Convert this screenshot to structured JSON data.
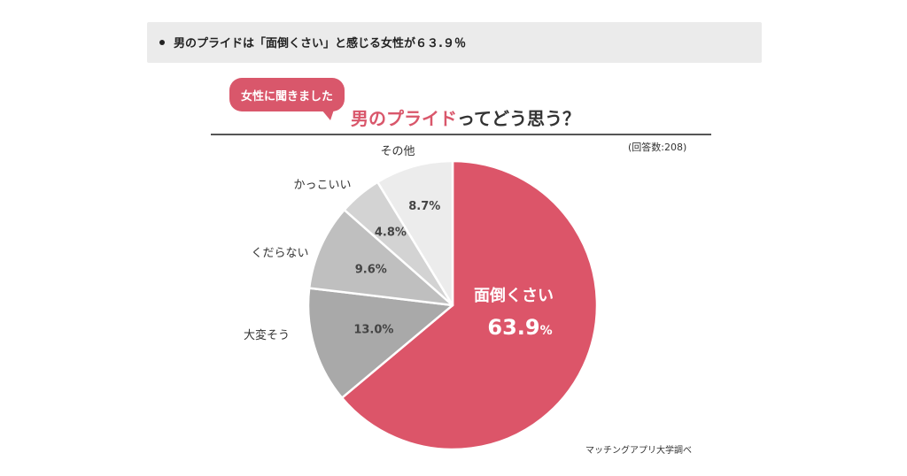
{
  "summary": {
    "bullet_text": "男のプライドは「面倒くさい」と感じる女性が６３.９％"
  },
  "header": {
    "bubble": "女性に聞きました",
    "question_accent": "男のプライド",
    "question_rest": "ってどう思う？",
    "respondents": "(回答数:208)"
  },
  "footer": {
    "source": "マッチングアプリ大学調べ"
  },
  "colors": {
    "accent": "#d9576b",
    "slice_colors": [
      "#dc5569",
      "#a9a9a9",
      "#bfbfbf",
      "#d3d3d3",
      "#ececec"
    ]
  },
  "chart_data": {
    "type": "pie",
    "title": "男のプライドってどう思う？",
    "categories": [
      "面倒くさい",
      "大変そう",
      "くだらない",
      "かっこいい",
      "その他"
    ],
    "values": [
      63.9,
      13.0,
      9.6,
      4.8,
      8.7
    ],
    "labels": [
      "63.9%",
      "13.0%",
      "9.6%",
      "4.8%",
      "8.7%"
    ],
    "big_pct_number": "63.9",
    "big_pct_unit": "%",
    "unit": "%",
    "n": 208,
    "start": "12 o'clock",
    "direction": "clockwise"
  }
}
